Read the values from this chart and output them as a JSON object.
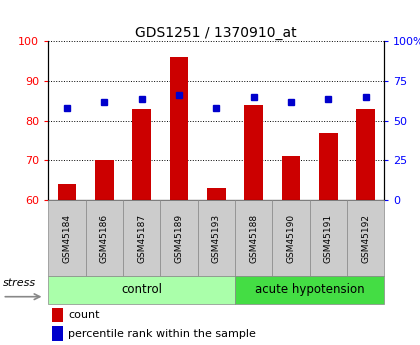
{
  "title": "GDS1251 / 1370910_at",
  "samples": [
    "GSM45184",
    "GSM45186",
    "GSM45187",
    "GSM45189",
    "GSM45193",
    "GSM45188",
    "GSM45190",
    "GSM45191",
    "GSM45192"
  ],
  "counts": [
    64,
    70,
    83,
    96,
    63,
    84,
    71,
    77,
    83
  ],
  "percentiles": [
    58,
    62,
    64,
    66,
    58,
    65,
    62,
    64,
    65
  ],
  "ylim_left": [
    60,
    100
  ],
  "ylim_right": [
    0,
    100
  ],
  "yticks_left": [
    60,
    70,
    80,
    90,
    100
  ],
  "yticks_right": [
    0,
    25,
    50,
    75,
    100
  ],
  "ytick_labels_right": [
    "0",
    "25",
    "50",
    "75",
    "100%"
  ],
  "bar_color": "#cc0000",
  "dot_color": "#0000cc",
  "label_bg_color": "#cccccc",
  "control_bg": "#aaffaa",
  "acute_bg": "#44dd44",
  "stress_label": "stress",
  "control_label": "control",
  "acute_label": "acute hypotension",
  "legend_count": "count",
  "legend_percentile": "percentile rank within the sample",
  "n_control": 5,
  "n_acute": 4
}
